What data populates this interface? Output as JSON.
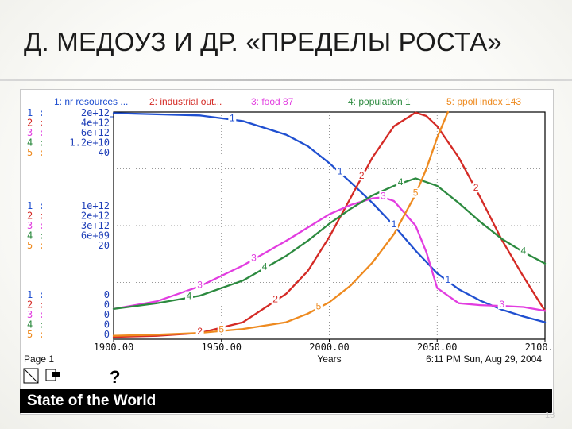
{
  "slide": {
    "title": "Д. МЕДОУЗ И ДР. «ПРЕДЕЛЫ РОСТА»",
    "footer": "State of the World",
    "page_number": "13"
  },
  "colors": {
    "nr_resources": "#1f4fd0",
    "industrial_output": "#d42a25",
    "food": "#e23de0",
    "population": "#2c8a3f",
    "ppoll_index": "#ee8a1f",
    "scale_text": "#1f3fb8"
  },
  "chart_data": {
    "type": "line",
    "xlabel": "Years",
    "x_ticks": [
      "1900.00",
      "1950.00",
      "2000.00",
      "2050.00",
      "2100.00"
    ],
    "xlim": [
      1900,
      2100
    ],
    "grid": true,
    "legend_position": "top",
    "page_label": "Page 1",
    "timestamp": "6:11 PM   Sun, Aug 29, 2004",
    "help_glyph": "?",
    "scales": {
      "top": [
        "1 :",
        "2 :",
        "3 :",
        "4 :",
        "5 :"
      ],
      "top_values": [
        "2e+12",
        "4e+12",
        "6e+12",
        "1.2e+10",
        "40"
      ],
      "mid_values": [
        "1e+12",
        "2e+12",
        "3e+12",
        "6e+09",
        "20"
      ],
      "bottom_values": [
        "0",
        "0",
        "0",
        "0",
        "0"
      ]
    },
    "series": [
      {
        "id": "1",
        "legend": "1: nr resources ...",
        "color_key": "nr_resources",
        "x": [
          1900,
          1920,
          1940,
          1960,
          1980,
          1990,
          2000,
          2010,
          2020,
          2030,
          2040,
          2050,
          2060,
          2070,
          2080,
          2090,
          2100
        ],
        "y": [
          1990000000000.0,
          1980000000000.0,
          1970000000000.0,
          1920000000000.0,
          1800000000000.0,
          1700000000000.0,
          1550000000000.0,
          1380000000000.0,
          1200000000000.0,
          1000000000000.0,
          780000000000.0,
          580000000000.0,
          440000000000.0,
          340000000000.0,
          260000000000.0,
          200000000000.0,
          150000000000.0
        ]
      },
      {
        "id": "2",
        "legend": "2: industrial out...",
        "color_key": "industrial_output",
        "x": [
          1900,
          1920,
          1940,
          1960,
          1980,
          1990,
          2000,
          2010,
          2020,
          2030,
          2040,
          2045,
          2050,
          2060,
          2070,
          2080,
          2090,
          2100
        ],
        "y": [
          40000000000.0,
          60000000000.0,
          110000000000.0,
          300000000000.0,
          800000000000.0,
          1200000000000.0,
          1800000000000.0,
          2500000000000.0,
          3200000000000.0,
          3750000000000.0,
          3990000000000.0,
          3930000000000.0,
          3750000000000.0,
          3200000000000.0,
          2500000000000.0,
          1750000000000.0,
          1100000000000.0,
          500000000000.0
        ]
      },
      {
        "id": "3",
        "legend": "3: food 87",
        "color_key": "food",
        "x": [
          1900,
          1920,
          1940,
          1960,
          1980,
          1990,
          2000,
          2010,
          2020,
          2025,
          2030,
          2040,
          2045,
          2050,
          2060,
          2070,
          2080,
          2090,
          2100
        ],
        "y": [
          800000000000.0,
          1000000000000.0,
          1400000000000.0,
          1950000000000.0,
          2600000000000.0,
          2950000000000.0,
          3300000000000.0,
          3550000000000.0,
          3720000000000.0,
          3750000000000.0,
          3650000000000.0,
          3000000000000.0,
          2300000000000.0,
          1350000000000.0,
          950000000000.0,
          900000000000.0,
          880000000000.0,
          850000000000.0,
          750000000000.0
        ]
      },
      {
        "id": "4",
        "legend": "4: population 1",
        "color_key": "population",
        "x": [
          1900,
          1920,
          1940,
          1960,
          1980,
          1990,
          2000,
          2010,
          2020,
          2030,
          2040,
          2050,
          2060,
          2070,
          2080,
          2090,
          2100
        ],
        "y": [
          1600000000.0,
          1900000000.0,
          2300000000.0,
          3100000000.0,
          4400000000.0,
          5200000000.0,
          6100000000.0,
          6900000000.0,
          7600000000.0,
          8100000000.0,
          8500000000.0,
          8100000000.0,
          7200000000.0,
          6200000000.0,
          5300000000.0,
          4600000000.0,
          4000000000.0
        ]
      },
      {
        "id": "5",
        "legend": "5: ppoll index 143",
        "color_key": "ppoll_index",
        "x": [
          1900,
          1920,
          1940,
          1960,
          1980,
          1990,
          2000,
          2010,
          2020,
          2030,
          2035,
          2040,
          2045,
          2050,
          2055
        ],
        "y": [
          0.6,
          0.8,
          1.1,
          1.8,
          3.0,
          4.5,
          6.5,
          9.5,
          13.5,
          18.5,
          22.0,
          25.5,
          30.0,
          35.5,
          40.0
        ]
      }
    ]
  }
}
